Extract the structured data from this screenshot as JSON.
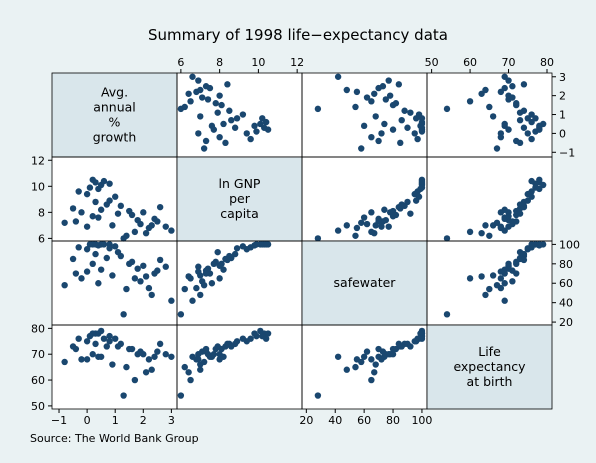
{
  "chart_data": {
    "type": "scatter_matrix",
    "title": "Summary of 1998 life−expectancy data",
    "note": "Source: The World Bank Group",
    "color": "#1a476f",
    "variables": [
      {
        "label": [
          "Avg.",
          "annual",
          "%",
          "growth"
        ],
        "lim": [
          -1.25,
          3.2
        ],
        "ticks": [
          {
            "value": -1,
            "label": "−1"
          },
          0,
          1,
          2,
          3
        ],
        "values": [
          0.3,
          0.5,
          0.2,
          0.8,
          0.1,
          0.4,
          0.6,
          -0.3,
          0.0,
          1.0,
          0.3,
          -0.5,
          1.5,
          1.2,
          2.0,
          1.8,
          2.5,
          2.4,
          1.6,
          0.7,
          -0.2,
          0.4,
          2.2,
          1.9,
          0.9,
          2.8,
          3.0,
          2.1,
          1.3,
          -0.8,
          0.2,
          1.1,
          0.5,
          -0.4,
          2.6,
          1.4,
          0.0,
          2.3,
          1.7,
          0.8
        ]
      },
      {
        "label": [
          "ln GNP",
          "per",
          "capita"
        ],
        "lim": [
          5.8,
          12.25
        ],
        "ticks": [
          6,
          8,
          10,
          12
        ],
        "values": [
          10.3,
          10.1,
          10.5,
          10.2,
          9.9,
          9.8,
          10.4,
          9.6,
          9.4,
          9.2,
          8.8,
          8.3,
          8.1,
          8.5,
          8.0,
          7.4,
          7.3,
          7.5,
          7.8,
          8.6,
          8.0,
          7.6,
          6.8,
          7.1,
          7.0,
          6.9,
          6.6,
          6.4,
          6.0,
          7.2,
          7.7,
          7.9,
          8.2,
          7.3,
          8.4,
          6.2,
          6.9,
          7.0,
          6.5,
          8.9
        ]
      },
      {
        "label": [
          "safewater"
        ],
        "lim": [
          17,
          103.5
        ],
        "ticks": [
          20,
          40,
          60,
          80,
          100
        ],
        "values": [
          100,
          100,
          100,
          100,
          100,
          99,
          100,
          97,
          95,
          98,
          90,
          85,
          80,
          88,
          78,
          75,
          73,
          70,
          82,
          86,
          65,
          60,
          55,
          62,
          68,
          77,
          42,
          67,
          28,
          58,
          80,
          92,
          74,
          70,
          84,
          54,
          72,
          48,
          65,
          96
        ]
      },
      {
        "label": [
          "Life",
          "expectancy",
          "at birth"
        ],
        "lim": [
          48.8,
          81.3
        ],
        "ticks": [
          50,
          60,
          70,
          80
        ],
        "values": [
          78,
          79,
          78,
          77,
          77,
          78,
          76,
          76,
          75,
          76,
          74,
          73,
          72,
          74,
          70,
          70,
          71,
          69,
          72,
          73,
          68,
          69,
          68,
          71,
          66,
          70,
          69,
          63,
          54,
          67,
          70,
          73,
          69,
          72,
          74,
          65,
          68,
          64,
          60,
          75
        ]
      }
    ]
  }
}
